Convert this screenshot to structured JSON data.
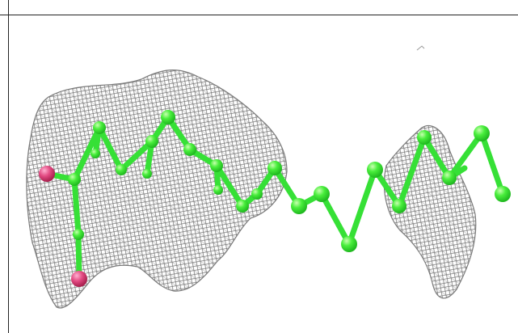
{
  "figure": {
    "subject": "molecule-with-density-mesh",
    "colors": {
      "background": "#ffffff",
      "frame": "#222222",
      "mesh": "#6b6b6b",
      "carbon": "#33e833",
      "carbon_highlight": "#a8ff8a",
      "oxygen": "#e0407a"
    }
  }
}
